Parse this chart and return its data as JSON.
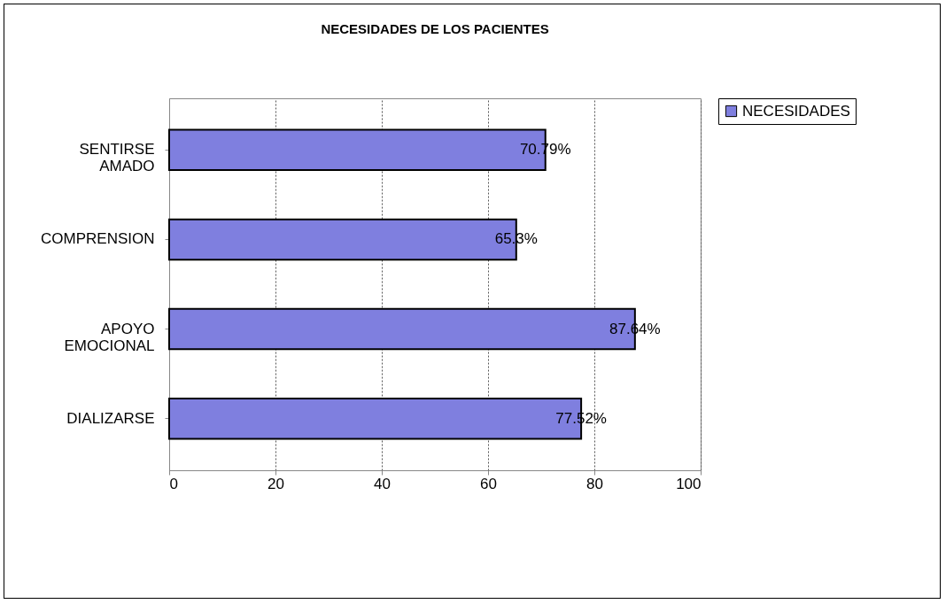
{
  "chart_data": {
    "type": "bar",
    "title": "NECESIDADES DE LOS PACIENTES",
    "orientation": "horizontal",
    "categories": [
      "SENTIRSE AMADO",
      "COMPRENSION",
      "APOYO EMOCIONAL",
      "DIALIZARSE"
    ],
    "series": [
      {
        "name": "NECESIDADES",
        "color": "#7f7fdf",
        "values": [
          70.79,
          65.3,
          87.64,
          77.52
        ]
      }
    ],
    "value_labels": [
      "70.79%",
      "65.3%",
      "87.64%",
      "77.52%"
    ],
    "xlim": [
      0,
      100
    ],
    "xticks": [
      0,
      20,
      40,
      60,
      80,
      100
    ],
    "grid": "x",
    "legend": "right"
  }
}
